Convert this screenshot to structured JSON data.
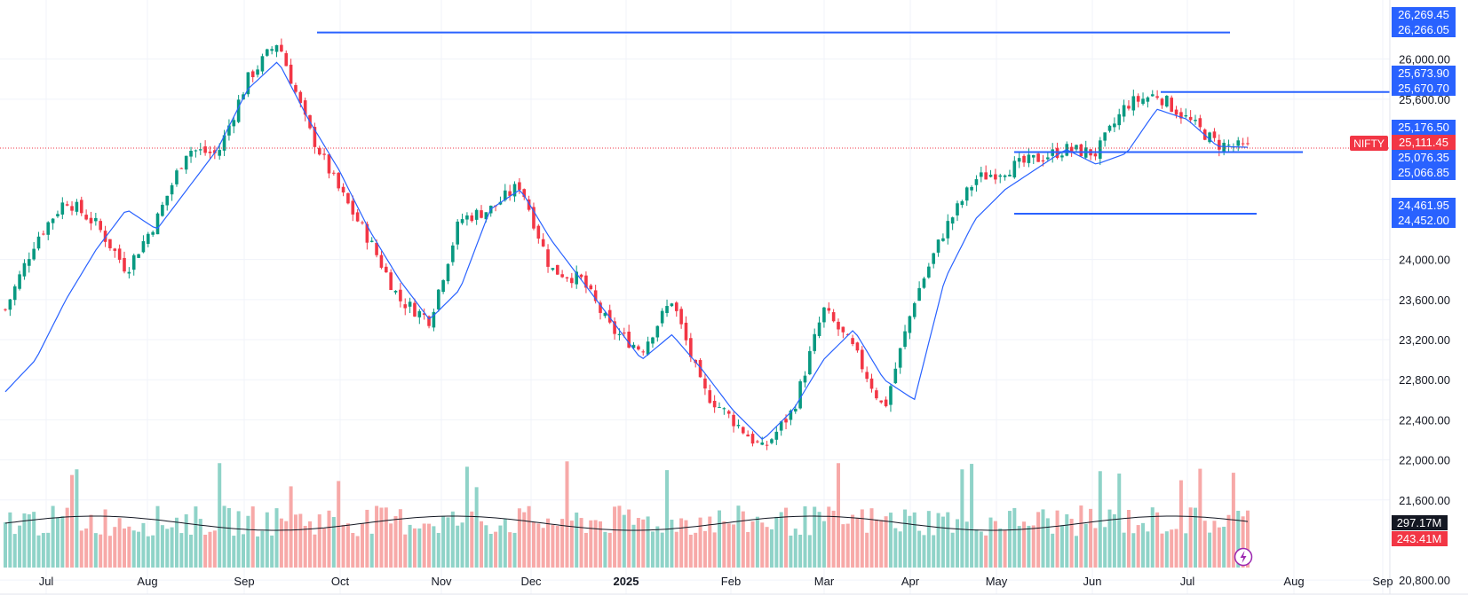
{
  "chart_data": {
    "type": "candlestick",
    "symbol": "NIFTY",
    "last_price_label": "25,111.45",
    "x_tick_labels": [
      "Jul",
      "Aug",
      "Sep",
      "Oct",
      "Nov",
      "Dec",
      "2025",
      "Feb",
      "Mar",
      "Apr",
      "May",
      "Jun",
      "Jul",
      "Aug",
      "Sep"
    ],
    "y_tick_labels": [
      "26,000.00",
      "25,600.00",
      "24,000.00",
      "23,600.00",
      "23,200.00",
      "22,800.00",
      "22,400.00",
      "22,000.00",
      "21,600.00",
      "20,800.00"
    ],
    "y_tick_values": [
      26000,
      25600,
      24000,
      23600,
      23200,
      22800,
      22400,
      22000,
      21600,
      20800
    ],
    "price_range": [
      20660,
      26590
    ],
    "price_badges": [
      {
        "label": "26,269.45",
        "color": "#2962ff"
      },
      {
        "label": "26,266.05",
        "color": "#2962ff"
      },
      {
        "label": "25,673.90",
        "color": "#2962ff"
      },
      {
        "label": "25,670.70",
        "color": "#2962ff"
      },
      {
        "label": "25,176.50",
        "color": "#2962ff"
      },
      {
        "label": "25,111.45",
        "color": "#f23645"
      },
      {
        "label": "25,076.35",
        "color": "#2962ff"
      },
      {
        "label": "25,066.85",
        "color": "#2962ff"
      },
      {
        "label": "24,461.95",
        "color": "#2962ff"
      },
      {
        "label": "24,452.00",
        "color": "#2962ff"
      }
    ],
    "volume_badges": [
      {
        "label": "297.17M",
        "color": "#131722"
      },
      {
        "label": "243.41M",
        "color": "#f23645"
      }
    ],
    "horizontal_levels": [
      26266,
      25672,
      25072,
      24457
    ],
    "ma_anchor_values": [
      22680,
      23000,
      23600,
      24100,
      24500,
      24300,
      24700,
      25100,
      25700,
      25980,
      25400,
      24900,
      24300,
      23800,
      23400,
      23700,
      24500,
      24700,
      24200,
      23800,
      23400,
      23000,
      23250,
      22900,
      22500,
      22200,
      22500,
      23000,
      23300,
      22800,
      22600,
      23800,
      24400,
      24700,
      24900,
      25100,
      24950,
      25060,
      25500,
      25400,
      25130,
      25120
    ],
    "candle_anchor_closes": [
      23500,
      24200,
      24600,
      24350,
      23900,
      24400,
      25100,
      25050,
      25800,
      26180,
      25300,
      24700,
      24200,
      23600,
      23400,
      24400,
      24500,
      24750,
      23900,
      23800,
      23300,
      23100,
      23600,
      22700,
      22400,
      22100,
      22500,
      23500,
      23100,
      22500,
      23600,
      24300,
      24800,
      24900,
      25000,
      25100,
      25060,
      25550,
      25650,
      25400,
      25150,
      25111
    ],
    "candle_up_color": "#089981",
    "candle_down_color": "#f23645",
    "ma_color": "#2962ff",
    "level_color": "#2962ff",
    "volume_ma_color": "#131722"
  }
}
